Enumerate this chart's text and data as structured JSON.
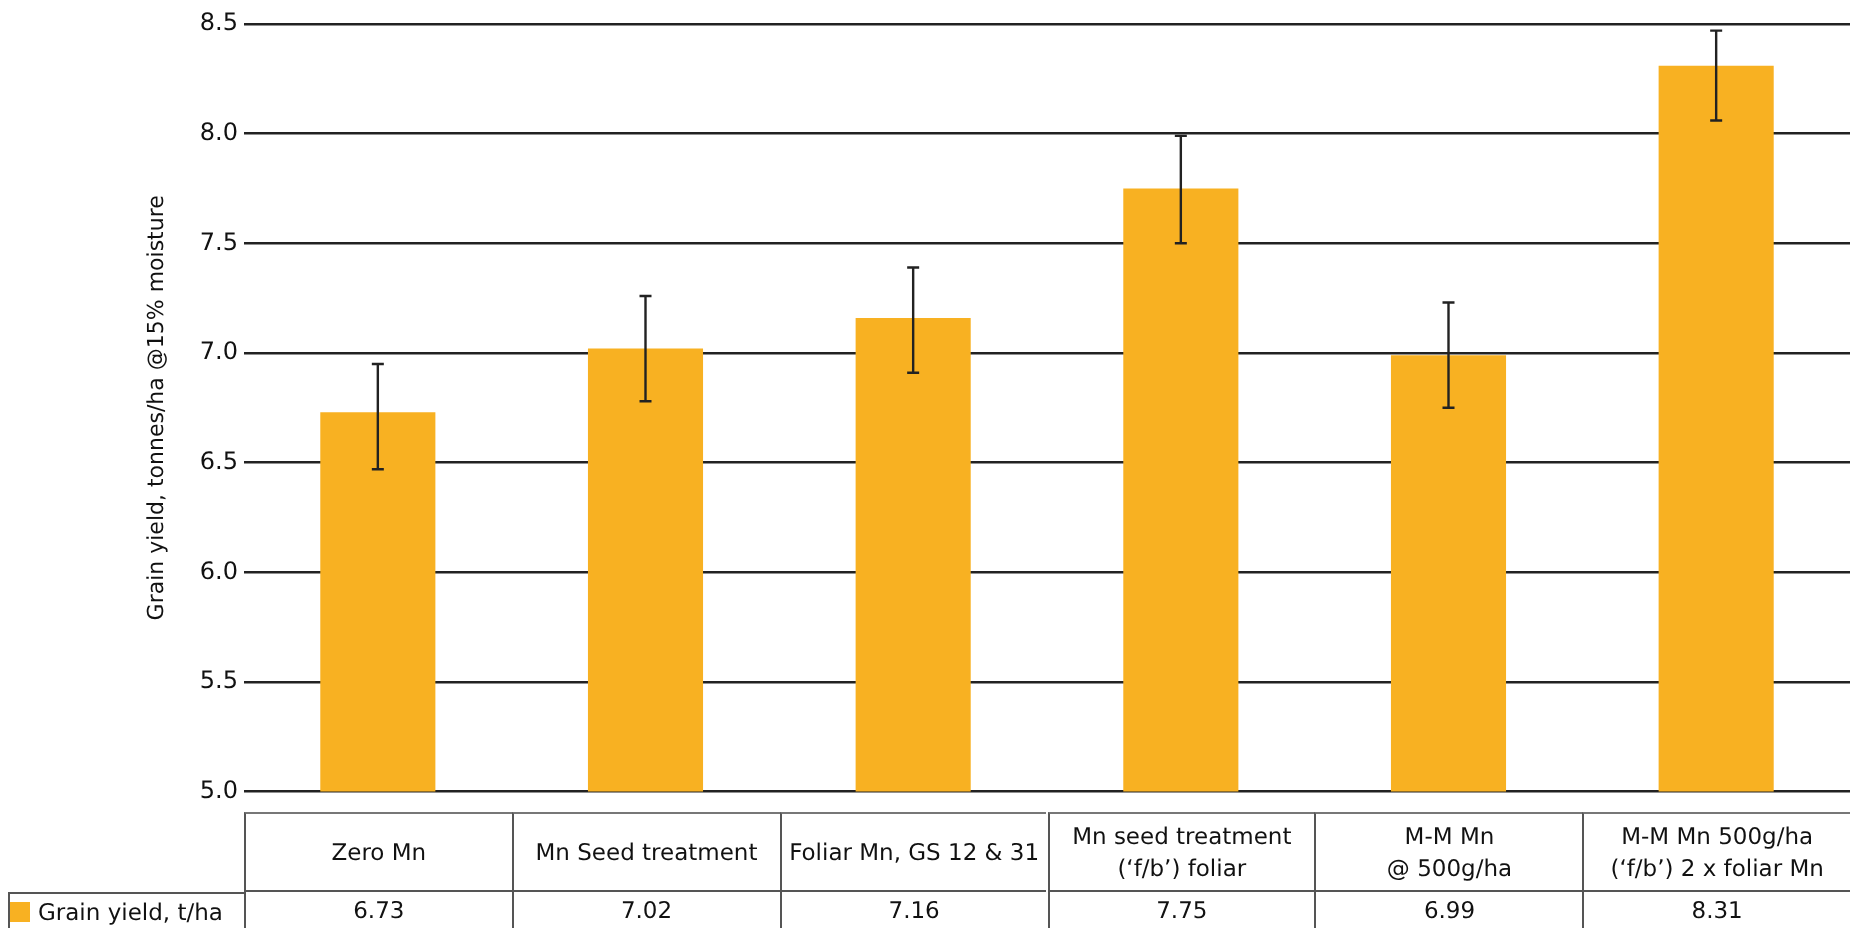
{
  "chart_data": {
    "type": "bar",
    "ylabel": "Grain yield, tonnes/ha @15% moisture",
    "categories": [
      "Zero Mn",
      "Mn Seed treatment",
      "Foliar Mn, GS 12 & 31",
      "Mn seed treatment\n(‘f/b’) foliar",
      "M-M Mn\n@ 500g/ha",
      "M-M Mn 500g/ha\n(‘f/b’) 2 x foliar Mn"
    ],
    "series": [
      {
        "name": "Grain yield, t/ha",
        "color": "#f8b122",
        "values": [
          6.73,
          7.02,
          7.16,
          7.75,
          6.99,
          8.31
        ],
        "errors": [
          [
            6.47,
            6.95
          ],
          [
            6.78,
            7.26
          ],
          [
            6.91,
            7.39
          ],
          [
            7.5,
            7.99
          ],
          [
            6.75,
            7.23
          ],
          [
            8.06,
            8.47
          ]
        ]
      }
    ],
    "ylim": [
      5,
      8.5
    ],
    "yticks": [
      {
        "value": 5,
        "label": "5.0"
      },
      {
        "value": 5.5,
        "label": "5.5"
      },
      {
        "value": 6,
        "label": "6.0"
      },
      {
        "value": 6.5,
        "label": "6.5"
      },
      {
        "value": 7,
        "label": "7.0"
      },
      {
        "value": 7.5,
        "label": "7.5"
      },
      {
        "value": 8,
        "label": "8.0"
      },
      {
        "value": 8.5,
        "label": "8.5"
      }
    ],
    "grid": "y",
    "legend": "bottom left",
    "data_labels": true
  }
}
